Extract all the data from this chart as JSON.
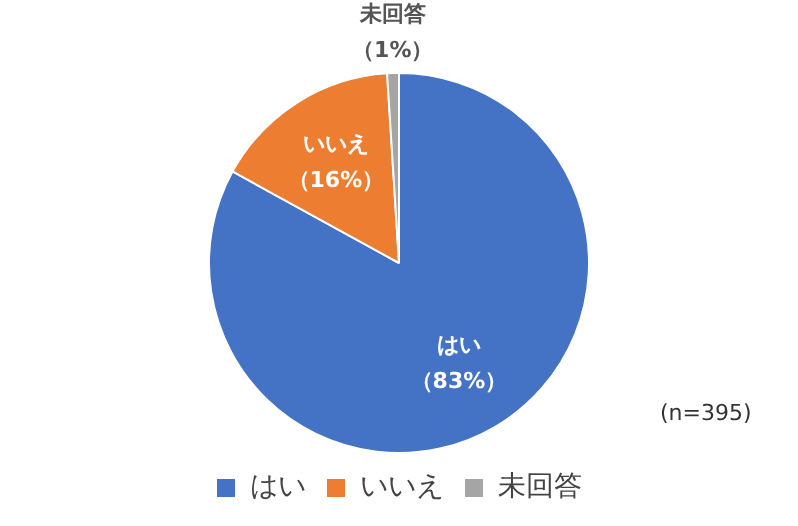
{
  "chart_data": {
    "type": "pie",
    "categories": [
      "はい",
      "いいえ",
      "未回答"
    ],
    "values": [
      83,
      16,
      1
    ],
    "colors": [
      "#4472c4",
      "#ed7d31",
      "#a5a5a5"
    ],
    "value_labels": [
      "（83%）",
      "（16%）",
      "（1%）"
    ],
    "legend": "bottom",
    "annotations": [
      {
        "text": "(n=395)"
      }
    ]
  }
}
